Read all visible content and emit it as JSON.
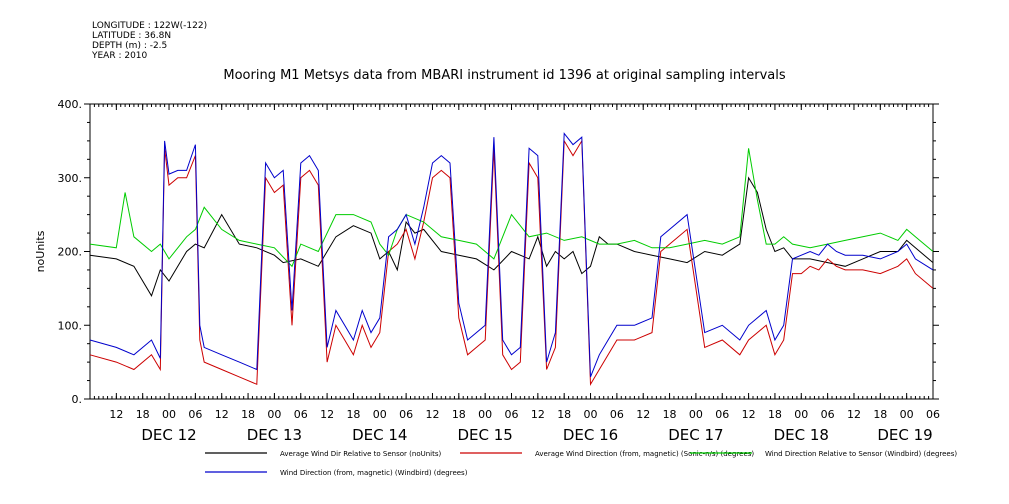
{
  "metadata": {
    "longitude": "LONGITUDE : 122W(-122)",
    "latitude": "LATITUDE : 36.8N",
    "depth": "DEPTH (m) : -2.5",
    "year": "YEAR : 2010"
  },
  "chart_data": {
    "type": "line",
    "title": "Mooring M1 Metsys data from MBARI instrument id 1396 at original sampling intervals",
    "xlabel": "",
    "ylabel": "noUnits",
    "ylim": [
      0,
      400
    ],
    "yticks": [
      "0.",
      "100.",
      "200.",
      "300.",
      "400."
    ],
    "xlim_hours": [
      0,
      192
    ],
    "xticks_hours": [
      "12",
      "18",
      "00",
      "06",
      "12",
      "18",
      "00",
      "06",
      "12",
      "18",
      "00",
      "06",
      "12",
      "18",
      "00",
      "06",
      "12",
      "18",
      "00",
      "06",
      "12",
      "18",
      "00",
      "06",
      "12",
      "18",
      "00",
      "06",
      "12",
      "18",
      "00",
      "06"
    ],
    "day_labels": [
      "DEC 12",
      "DEC 13",
      "DEC 14",
      "DEC 15",
      "DEC 16",
      "DEC 17",
      "DEC 18",
      "DEC 19"
    ],
    "grid": false,
    "legend_position": "bottom",
    "series": [
      {
        "name": "Average Wind Dir Relative to Sensor (noUnits)",
        "color": "#000000",
        "x": [
          0,
          6,
          10,
          14,
          16,
          18,
          22,
          24,
          26,
          30,
          34,
          38,
          42,
          44,
          48,
          52,
          54,
          56,
          60,
          64,
          66,
          68,
          70,
          72,
          74,
          76,
          80,
          84,
          88,
          92,
          96,
          100,
          102,
          104,
          106,
          108,
          110,
          112,
          114,
          116,
          118,
          120,
          124,
          128,
          132,
          136,
          140,
          144,
          148,
          150,
          152,
          154,
          156,
          158,
          160,
          164,
          168,
          172,
          176,
          180,
          184,
          186,
          188,
          192
        ],
        "y": [
          195,
          190,
          180,
          140,
          175,
          160,
          200,
          210,
          205,
          250,
          210,
          205,
          195,
          185,
          190,
          180,
          200,
          220,
          235,
          225,
          190,
          200,
          175,
          240,
          225,
          230,
          200,
          195,
          190,
          175,
          200,
          190,
          220,
          180,
          200,
          190,
          200,
          170,
          180,
          220,
          210,
          210,
          200,
          195,
          190,
          185,
          200,
          195,
          210,
          300,
          280,
          230,
          200,
          205,
          190,
          190,
          185,
          180,
          190,
          200,
          200,
          215,
          205,
          185
        ]
      },
      {
        "name": "Average Wind Direction (from, magnetic) (Sonic-n/s) (degrees)",
        "color": "#cc0000",
        "x": [
          0,
          6,
          10,
          14,
          16,
          17,
          18,
          20,
          22,
          24,
          25,
          26,
          30,
          34,
          38,
          40,
          42,
          44,
          46,
          48,
          50,
          52,
          54,
          56,
          58,
          60,
          62,
          64,
          66,
          68,
          70,
          72,
          74,
          76,
          78,
          80,
          82,
          84,
          86,
          88,
          90,
          92,
          94,
          96,
          98,
          100,
          102,
          104,
          106,
          108,
          110,
          112,
          114,
          116,
          118,
          120,
          124,
          128,
          130,
          132,
          136,
          140,
          144,
          148,
          150,
          152,
          154,
          156,
          158,
          160,
          162,
          164,
          166,
          168,
          170,
          172,
          176,
          180,
          184,
          186,
          188,
          192
        ],
        "y": [
          60,
          50,
          40,
          60,
          40,
          340,
          290,
          300,
          300,
          330,
          80,
          50,
          40,
          30,
          20,
          300,
          280,
          290,
          100,
          300,
          310,
          290,
          50,
          100,
          80,
          60,
          100,
          70,
          90,
          200,
          210,
          230,
          190,
          240,
          300,
          310,
          300,
          110,
          60,
          70,
          80,
          340,
          60,
          40,
          50,
          320,
          300,
          40,
          70,
          350,
          330,
          350,
          20,
          40,
          60,
          80,
          80,
          90,
          200,
          210,
          230,
          70,
          80,
          60,
          80,
          90,
          100,
          60,
          80,
          170,
          170,
          180,
          175,
          190,
          180,
          175,
          175,
          170,
          180,
          190,
          170,
          150
        ]
      },
      {
        "name": "Wind Direction Relative to Sensor (Windbird) (degrees)",
        "color": "#00cc00",
        "x": [
          0,
          6,
          8,
          10,
          14,
          16,
          18,
          22,
          24,
          26,
          30,
          34,
          38,
          42,
          46,
          48,
          52,
          56,
          60,
          64,
          66,
          68,
          70,
          72,
          76,
          80,
          84,
          88,
          92,
          96,
          100,
          104,
          108,
          112,
          116,
          120,
          124,
          128,
          132,
          136,
          140,
          144,
          148,
          150,
          152,
          154,
          156,
          158,
          160,
          164,
          168,
          172,
          176,
          180,
          184,
          186,
          188,
          192
        ],
        "y": [
          210,
          205,
          280,
          220,
          200,
          210,
          190,
          220,
          230,
          260,
          230,
          215,
          210,
          205,
          180,
          210,
          200,
          250,
          250,
          240,
          210,
          195,
          230,
          250,
          240,
          220,
          215,
          210,
          190,
          250,
          220,
          225,
          215,
          220,
          210,
          210,
          215,
          205,
          205,
          210,
          215,
          210,
          220,
          340,
          270,
          210,
          210,
          220,
          210,
          205,
          210,
          215,
          220,
          225,
          215,
          230,
          220,
          200
        ]
      },
      {
        "name": "Wind Direction (from, magnetic) (Windbird) (degrees)",
        "color": "#0000cc",
        "x": [
          0,
          6,
          10,
          14,
          16,
          17,
          18,
          20,
          22,
          24,
          25,
          26,
          30,
          34,
          38,
          40,
          42,
          44,
          46,
          48,
          50,
          52,
          54,
          56,
          58,
          60,
          62,
          64,
          66,
          68,
          70,
          72,
          74,
          76,
          78,
          80,
          82,
          84,
          86,
          88,
          90,
          92,
          94,
          96,
          98,
          100,
          102,
          104,
          106,
          108,
          110,
          112,
          114,
          116,
          118,
          120,
          124,
          128,
          130,
          132,
          136,
          140,
          144,
          148,
          150,
          152,
          154,
          156,
          158,
          160,
          162,
          164,
          166,
          168,
          170,
          172,
          176,
          180,
          184,
          186,
          188,
          192
        ],
        "y": [
          80,
          70,
          60,
          80,
          55,
          350,
          305,
          310,
          310,
          345,
          100,
          70,
          60,
          50,
          40,
          320,
          300,
          310,
          120,
          320,
          330,
          310,
          70,
          120,
          100,
          80,
          120,
          90,
          110,
          220,
          230,
          250,
          210,
          260,
          320,
          330,
          320,
          130,
          80,
          90,
          100,
          355,
          80,
          60,
          70,
          340,
          330,
          50,
          90,
          360,
          345,
          355,
          30,
          60,
          80,
          100,
          100,
          110,
          220,
          230,
          250,
          90,
          100,
          80,
          100,
          110,
          120,
          80,
          100,
          190,
          195,
          200,
          195,
          210,
          200,
          195,
          195,
          190,
          200,
          210,
          190,
          175
        ]
      }
    ]
  }
}
